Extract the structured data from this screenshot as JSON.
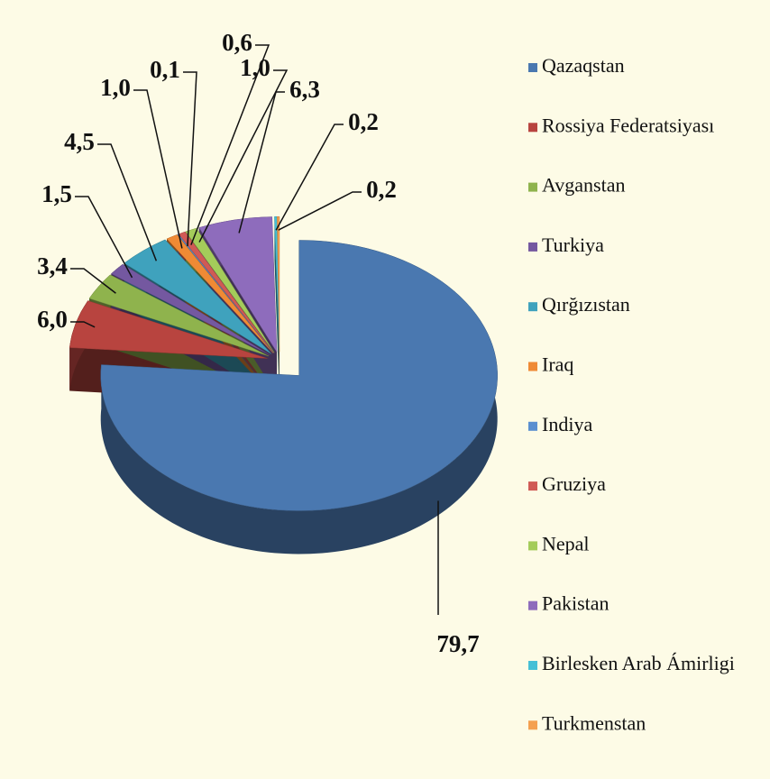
{
  "chart_data": {
    "type": "pie",
    "categories": [
      "Qazaqstan",
      "Rossiya Federatsiyası",
      "Avganstan",
      "Turkiya",
      "Qırğızıstan",
      "Iraq",
      "Indiya",
      "Gruziya",
      "Nepal",
      "Pakistan",
      "Birlesken Arab Ámirligi",
      "Turkmenstan"
    ],
    "values": [
      79.7,
      6.0,
      3.4,
      1.5,
      4.5,
      1.0,
      0.1,
      0.6,
      1.0,
      6.3,
      0.2,
      0.2
    ],
    "value_labels": [
      "79,7",
      "6,0",
      "3,4",
      "1,5",
      "4,5",
      "1,0",
      "0,1",
      "0,6",
      "1,0",
      "6,3",
      "0,2",
      "0,2"
    ],
    "colors": [
      "#4a78b0",
      "#b8443f",
      "#8fb34d",
      "#7458a0",
      "#3fa2bd",
      "#ef8a35",
      "#5a8fd0",
      "#d05a55",
      "#a4cc5a",
      "#8e6cbc",
      "#45c0d6",
      "#f4a050"
    ],
    "legend": "right"
  }
}
